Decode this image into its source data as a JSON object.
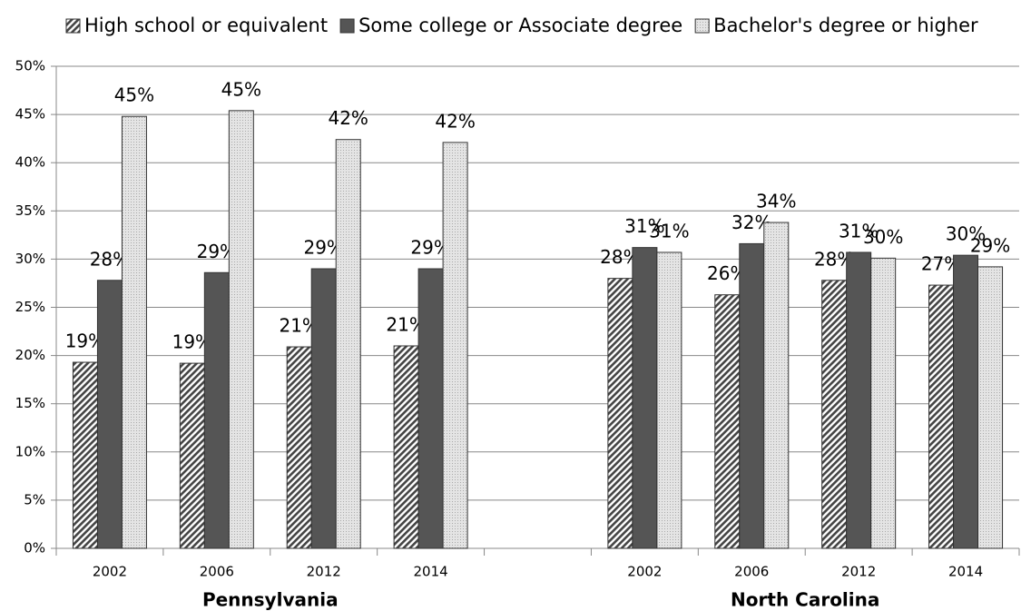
{
  "chart_data": {
    "type": "bar",
    "categories": [
      "2002",
      "2006",
      "2012",
      "2014",
      null,
      "2002",
      "2006",
      "2012",
      "2014"
    ],
    "groups": [
      {
        "label": "Pennsylvania",
        "start": 0,
        "end": 3
      },
      {
        "label": "North Carolina",
        "start": 5,
        "end": 8
      }
    ],
    "series": [
      {
        "name": "High school or equivalent",
        "color": "#444444",
        "pattern": "hatch",
        "values": [
          19.3,
          19.2,
          20.9,
          21.0,
          null,
          28.0,
          26.3,
          27.8,
          27.3
        ],
        "value_labels": [
          "19%",
          "19%",
          "21%",
          "21%",
          null,
          "28%",
          "26%",
          "28%",
          "27%"
        ]
      },
      {
        "name": "Some college or Associate degree",
        "color": "#555555",
        "pattern": "solid",
        "values": [
          27.8,
          28.6,
          29.0,
          29.0,
          null,
          31.2,
          31.6,
          30.7,
          30.4
        ],
        "value_labels": [
          "28%",
          "29%",
          "29%",
          "29%",
          null,
          "31%",
          "32%",
          "31%",
          "30%"
        ]
      },
      {
        "name": "Bachelor's degree or higher",
        "color": "#dddddd",
        "pattern": "dots",
        "values": [
          44.8,
          45.4,
          42.4,
          42.1,
          null,
          30.7,
          33.8,
          30.1,
          29.2
        ],
        "value_labels": [
          "45%",
          "45%",
          "42%",
          "42%",
          null,
          "31%",
          "34%",
          "30%",
          "29%"
        ]
      }
    ],
    "ylim": [
      0,
      50
    ],
    "yticks": [
      {
        "value": 0,
        "label": "0%"
      },
      {
        "value": 5,
        "label": "5%"
      },
      {
        "value": 10,
        "label": "10%"
      },
      {
        "value": 15,
        "label": "15%"
      },
      {
        "value": 20,
        "label": "20%"
      },
      {
        "value": 25,
        "label": "25%"
      },
      {
        "value": 30,
        "label": "30%"
      },
      {
        "value": 35,
        "label": "35%"
      },
      {
        "value": 40,
        "label": "40%"
      },
      {
        "value": 45,
        "label": "45%"
      },
      {
        "value": 50,
        "label": "50%"
      }
    ],
    "grid": true,
    "legend": "top"
  }
}
